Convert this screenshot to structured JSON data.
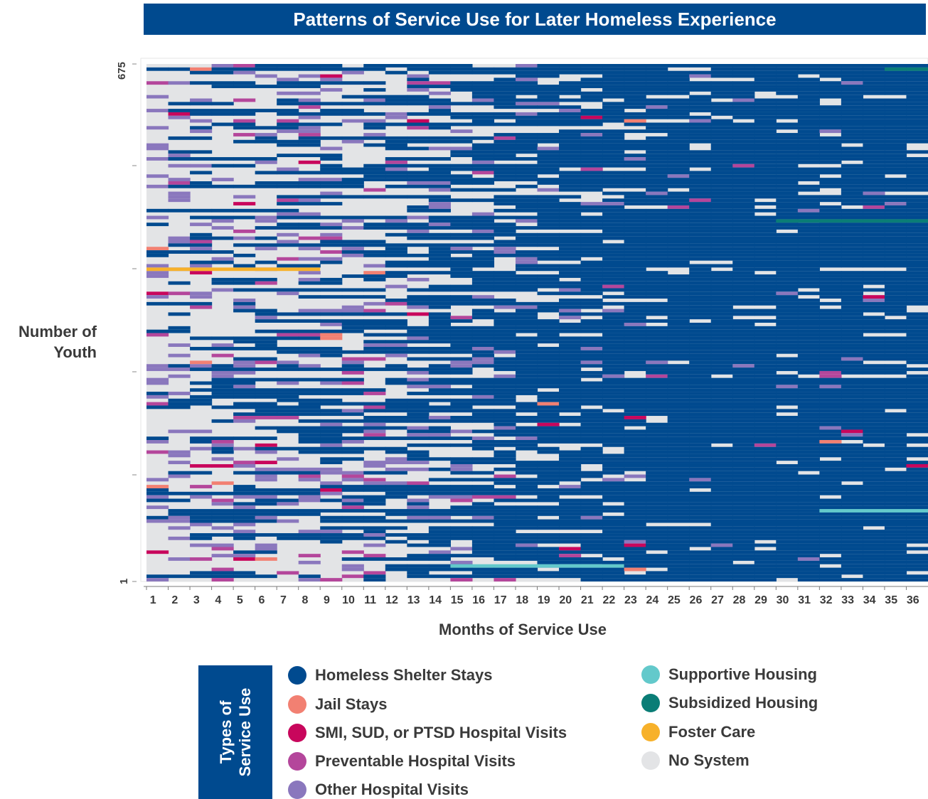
{
  "chart_data": {
    "type": "heatmap",
    "title": "Patterns of Service Use for Later Homeless Experience",
    "xlabel": "Months of Service Use",
    "ylabel": "Number of Youth",
    "y_ticks": [
      "1",
      "675"
    ],
    "ylim": [
      1,
      675
    ],
    "x_categories": [
      "1",
      "2",
      "3",
      "4",
      "5",
      "6",
      "7",
      "8",
      "9",
      "10",
      "11",
      "12",
      "13",
      "14",
      "15",
      "16",
      "17",
      "18",
      "19",
      "20",
      "21",
      "22",
      "23",
      "24",
      "25",
      "26",
      "27",
      "28",
      "29",
      "30",
      "31",
      "32",
      "33",
      "34",
      "35",
      "36"
    ],
    "legend_title": "Types of Service Use",
    "legend": [
      {
        "label": "Homeless Shelter Stays",
        "color": "#004a8f"
      },
      {
        "label": "Jail Stays",
        "color": "#f28072"
      },
      {
        "label": "SMI, SUD, or PTSD Hospital Visits",
        "color": "#c8065c"
      },
      {
        "label": "Preventable Hospital Visits",
        "color": "#b4469b"
      },
      {
        "label": "Other Hospital Visits",
        "color": "#8a77bd"
      },
      {
        "label": "Supportive Housing",
        "color": "#63c9cb"
      },
      {
        "label": "Subsidized Housing",
        "color": "#0a7d76"
      },
      {
        "label": "Foster Care",
        "color": "#f7b12a"
      },
      {
        "label": "No System",
        "color": "#e3e4e6"
      }
    ],
    "shelter_share_by_month": [
      0.09,
      0.12,
      0.14,
      0.15,
      0.16,
      0.17,
      0.19,
      0.2,
      0.22,
      0.24,
      0.26,
      0.28,
      0.3,
      0.34,
      0.38,
      0.42,
      0.46,
      0.5,
      0.54,
      0.58,
      0.62,
      0.66,
      0.7,
      0.74,
      0.76,
      0.78,
      0.8,
      0.8,
      0.8,
      0.81,
      0.81,
      0.81,
      0.82,
      0.82,
      0.82,
      0.82
    ],
    "grid": false
  }
}
